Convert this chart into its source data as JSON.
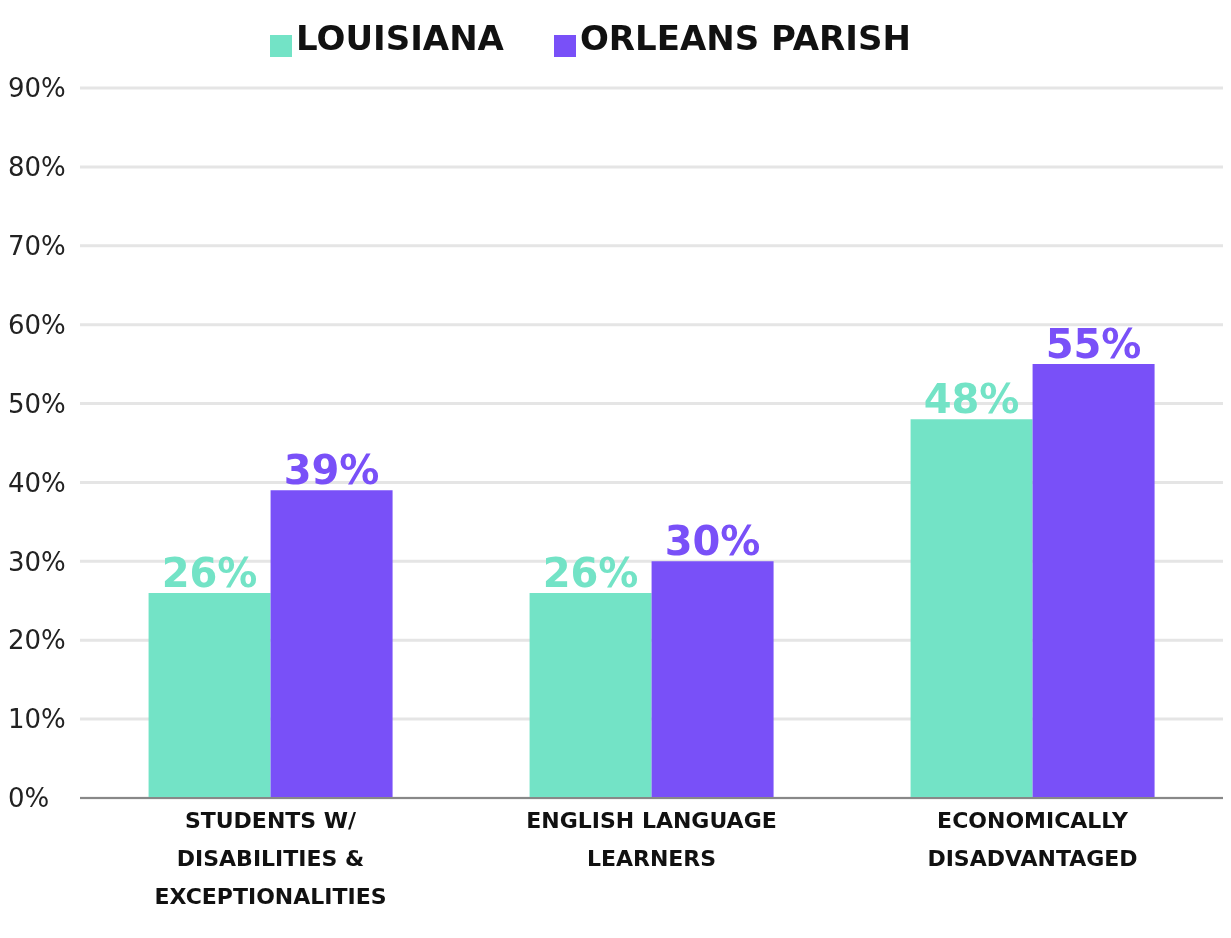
{
  "chart_data": {
    "type": "bar",
    "categories": [
      "STUDENTS W/ DISABILITIES & EXCEPTIONALITIES",
      "ENGLISH LANGUAGE LEARNERS",
      "ECONOMICALLY DISADVANTAGED"
    ],
    "series": [
      {
        "name": "LOUISIANA",
        "color": "#73e3c6",
        "values": [
          26,
          26,
          48
        ],
        "value_labels": [
          "26%",
          "26%",
          "48%"
        ]
      },
      {
        "name": "ORLEANS PARISH",
        "color": "#7950f8",
        "values": [
          39,
          30,
          55
        ],
        "value_labels": [
          "39%",
          "30%",
          "55%"
        ]
      }
    ],
    "ylim": [
      0,
      90
    ],
    "yticks": [
      {
        "value": 0,
        "label": "0%"
      },
      {
        "value": 10,
        "label": "10%"
      },
      {
        "value": 20,
        "label": "20%"
      },
      {
        "value": 30,
        "label": "30%"
      },
      {
        "value": 40,
        "label": "40%"
      },
      {
        "value": 50,
        "label": "50%"
      },
      {
        "value": 60,
        "label": "60%"
      },
      {
        "value": 70,
        "label": "70%"
      },
      {
        "value": 80,
        "label": "80%"
      },
      {
        "value": 90,
        "label": "90%"
      }
    ],
    "grid": "y",
    "legend": "top"
  }
}
